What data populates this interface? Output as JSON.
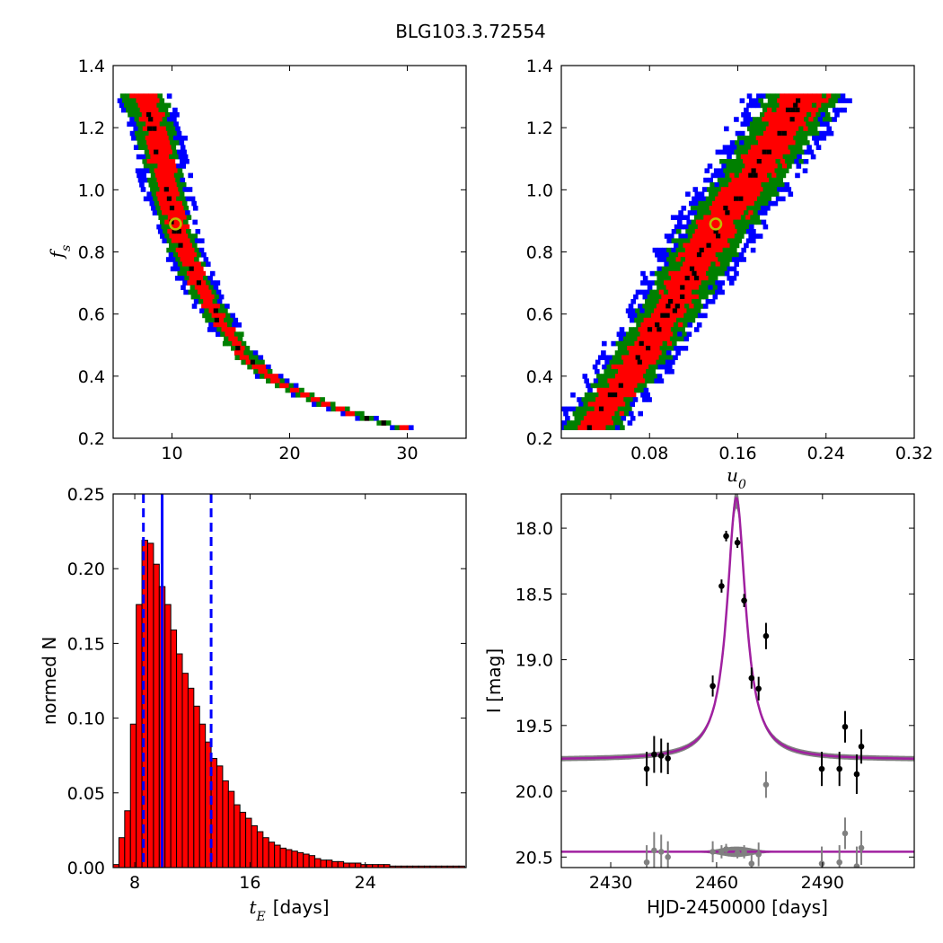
{
  "figure_title": "BLG103.3.72554",
  "colors": {
    "sigma1": "#ff0000",
    "sigma2": "#008000",
    "sigma3": "#0000ff",
    "best": "#000000",
    "marker_edge": "#bfbf00",
    "model": "#a020a0",
    "envelope": "#808080",
    "data": "#000000",
    "residual": "#808080"
  },
  "chart_data": [
    {
      "type": "heatmap",
      "panel": "fs_vs_tE",
      "xlabel": "",
      "ylabel": "f_s",
      "xlim": [
        5,
        35
      ],
      "ylim": [
        0.2,
        1.4
      ],
      "xticks": [
        "10",
        "20",
        "30"
      ],
      "yticks": [
        "0.2",
        "0.4",
        "0.6",
        "0.8",
        "1.0",
        "1.2",
        "1.4"
      ],
      "best_fit": {
        "x": 10.3,
        "y": 0.89
      },
      "ridge": [
        [
          7.5,
          1.31
        ],
        [
          8.5,
          1.2
        ],
        [
          9.5,
          1.02
        ],
        [
          10.5,
          0.86
        ],
        [
          12,
          0.72
        ],
        [
          14,
          0.58
        ],
        [
          16,
          0.47
        ],
        [
          19,
          0.38
        ],
        [
          23,
          0.31
        ],
        [
          27,
          0.26
        ],
        [
          31,
          0.22
        ]
      ]
    },
    {
      "type": "heatmap",
      "panel": "fs_vs_u0",
      "xlabel": "u_0",
      "ylabel": "",
      "xlim": [
        0,
        0.32
      ],
      "ylim": [
        0.2,
        1.4
      ],
      "xticks": [
        "0.08",
        "0.16",
        "0.24",
        "0.32"
      ],
      "yticks": [
        "0.2",
        "0.4",
        "0.6",
        "0.8",
        "1.0",
        "1.2",
        "1.4"
      ],
      "best_fit": {
        "x": 0.14,
        "y": 0.89
      },
      "ridge": [
        [
          0.025,
          0.22
        ],
        [
          0.06,
          0.4
        ],
        [
          0.1,
          0.62
        ],
        [
          0.14,
          0.87
        ],
        [
          0.18,
          1.08
        ],
        [
          0.22,
          1.31
        ]
      ]
    },
    {
      "type": "bar",
      "panel": "tE_histogram",
      "xlabel": "days",
      "ylabel": "normed N",
      "xlim": [
        6.5,
        31
      ],
      "ylim": [
        0,
        0.25
      ],
      "xticks": [
        "8",
        "16",
        "24"
      ],
      "yticks": [
        "0.00",
        "0.05",
        "0.10",
        "0.15",
        "0.20",
        "0.25"
      ],
      "bin_start": 6.5,
      "bin_width": 0.4,
      "values": [
        0.002,
        0.02,
        0.038,
        0.096,
        0.176,
        0.219,
        0.217,
        0.203,
        0.188,
        0.176,
        0.159,
        0.143,
        0.13,
        0.12,
        0.108,
        0.096,
        0.084,
        0.073,
        0.068,
        0.058,
        0.051,
        0.042,
        0.037,
        0.033,
        0.028,
        0.024,
        0.02,
        0.017,
        0.015,
        0.013,
        0.012,
        0.011,
        0.01,
        0.009,
        0.008,
        0.006,
        0.005,
        0.005,
        0.004,
        0.004,
        0.003,
        0.003,
        0.003,
        0.002,
        0.002,
        0.002,
        0.002,
        0.002,
        0.001,
        0.001,
        0.001,
        0.001,
        0.001,
        0.001,
        0.001,
        0.001,
        0.001,
        0.001,
        0.001,
        0.001,
        0.001
      ],
      "vlines": {
        "best": 9.9,
        "low": 8.6,
        "high": 13.3
      }
    },
    {
      "type": "scatter",
      "panel": "lightcurve",
      "xlabel": "HJD-2450000 [days]",
      "ylabel": "I [mag]",
      "xlim": [
        2416,
        2516
      ],
      "ylim": [
        20.58,
        17.74
      ],
      "xticks": [
        "2430",
        "2460",
        "2490"
      ],
      "yticks": [
        "18.0",
        "18.5",
        "19.0",
        "19.5",
        "20.0",
        "20.5"
      ],
      "model": {
        "t0": 2465.6,
        "peak_mag": 17.77,
        "base_mag": 19.76,
        "width": 3.2
      },
      "residual_baseline": 20.46,
      "points": [
        {
          "t": 2440.2,
          "mag": 19.83,
          "err": 0.13
        },
        {
          "t": 2442.3,
          "mag": 19.72,
          "err": 0.14
        },
        {
          "t": 2444.3,
          "mag": 19.73,
          "err": 0.13
        },
        {
          "t": 2446.2,
          "mag": 19.75,
          "err": 0.12
        },
        {
          "t": 2458.9,
          "mag": 19.2,
          "err": 0.08
        },
        {
          "t": 2461.4,
          "mag": 18.44,
          "err": 0.05
        },
        {
          "t": 2462.7,
          "mag": 18.06,
          "err": 0.04
        },
        {
          "t": 2465.9,
          "mag": 18.11,
          "err": 0.04
        },
        {
          "t": 2467.8,
          "mag": 18.55,
          "err": 0.05
        },
        {
          "t": 2469.9,
          "mag": 19.14,
          "err": 0.08
        },
        {
          "t": 2471.9,
          "mag": 19.22,
          "err": 0.09
        },
        {
          "t": 2474.0,
          "mag": 18.82,
          "err": 0.1
        },
        {
          "t": 2489.8,
          "mag": 19.83,
          "err": 0.13
        },
        {
          "t": 2494.8,
          "mag": 19.83,
          "err": 0.13
        },
        {
          "t": 2496.4,
          "mag": 19.51,
          "err": 0.12
        },
        {
          "t": 2499.7,
          "mag": 19.87,
          "err": 0.15
        },
        {
          "t": 2501.0,
          "mag": 19.66,
          "err": 0.13
        }
      ],
      "residuals": [
        {
          "t": 2440.2,
          "res": 20.54,
          "err": 0.13
        },
        {
          "t": 2442.3,
          "res": 20.45,
          "err": 0.14
        },
        {
          "t": 2444.3,
          "res": 20.46,
          "err": 0.13
        },
        {
          "t": 2446.2,
          "res": 20.5,
          "err": 0.12
        },
        {
          "t": 2458.9,
          "res": 20.46,
          "err": 0.08
        },
        {
          "t": 2461.4,
          "res": 20.46,
          "err": 0.05
        },
        {
          "t": 2462.7,
          "res": 20.44,
          "err": 0.04
        },
        {
          "t": 2465.9,
          "res": 20.47,
          "err": 0.04
        },
        {
          "t": 2467.8,
          "res": 20.46,
          "err": 0.05
        },
        {
          "t": 2469.9,
          "res": 20.55,
          "err": 0.08
        },
        {
          "t": 2471.9,
          "res": 20.48,
          "err": 0.09
        },
        {
          "t": 2474.0,
          "res": 19.95,
          "err": 0.1
        },
        {
          "t": 2489.8,
          "res": 20.55,
          "err": 0.13
        },
        {
          "t": 2494.8,
          "res": 20.54,
          "err": 0.13
        },
        {
          "t": 2496.4,
          "res": 20.32,
          "err": 0.12
        },
        {
          "t": 2499.7,
          "res": 20.57,
          "err": 0.15
        },
        {
          "t": 2501.0,
          "res": 20.43,
          "err": 0.13
        }
      ]
    }
  ]
}
